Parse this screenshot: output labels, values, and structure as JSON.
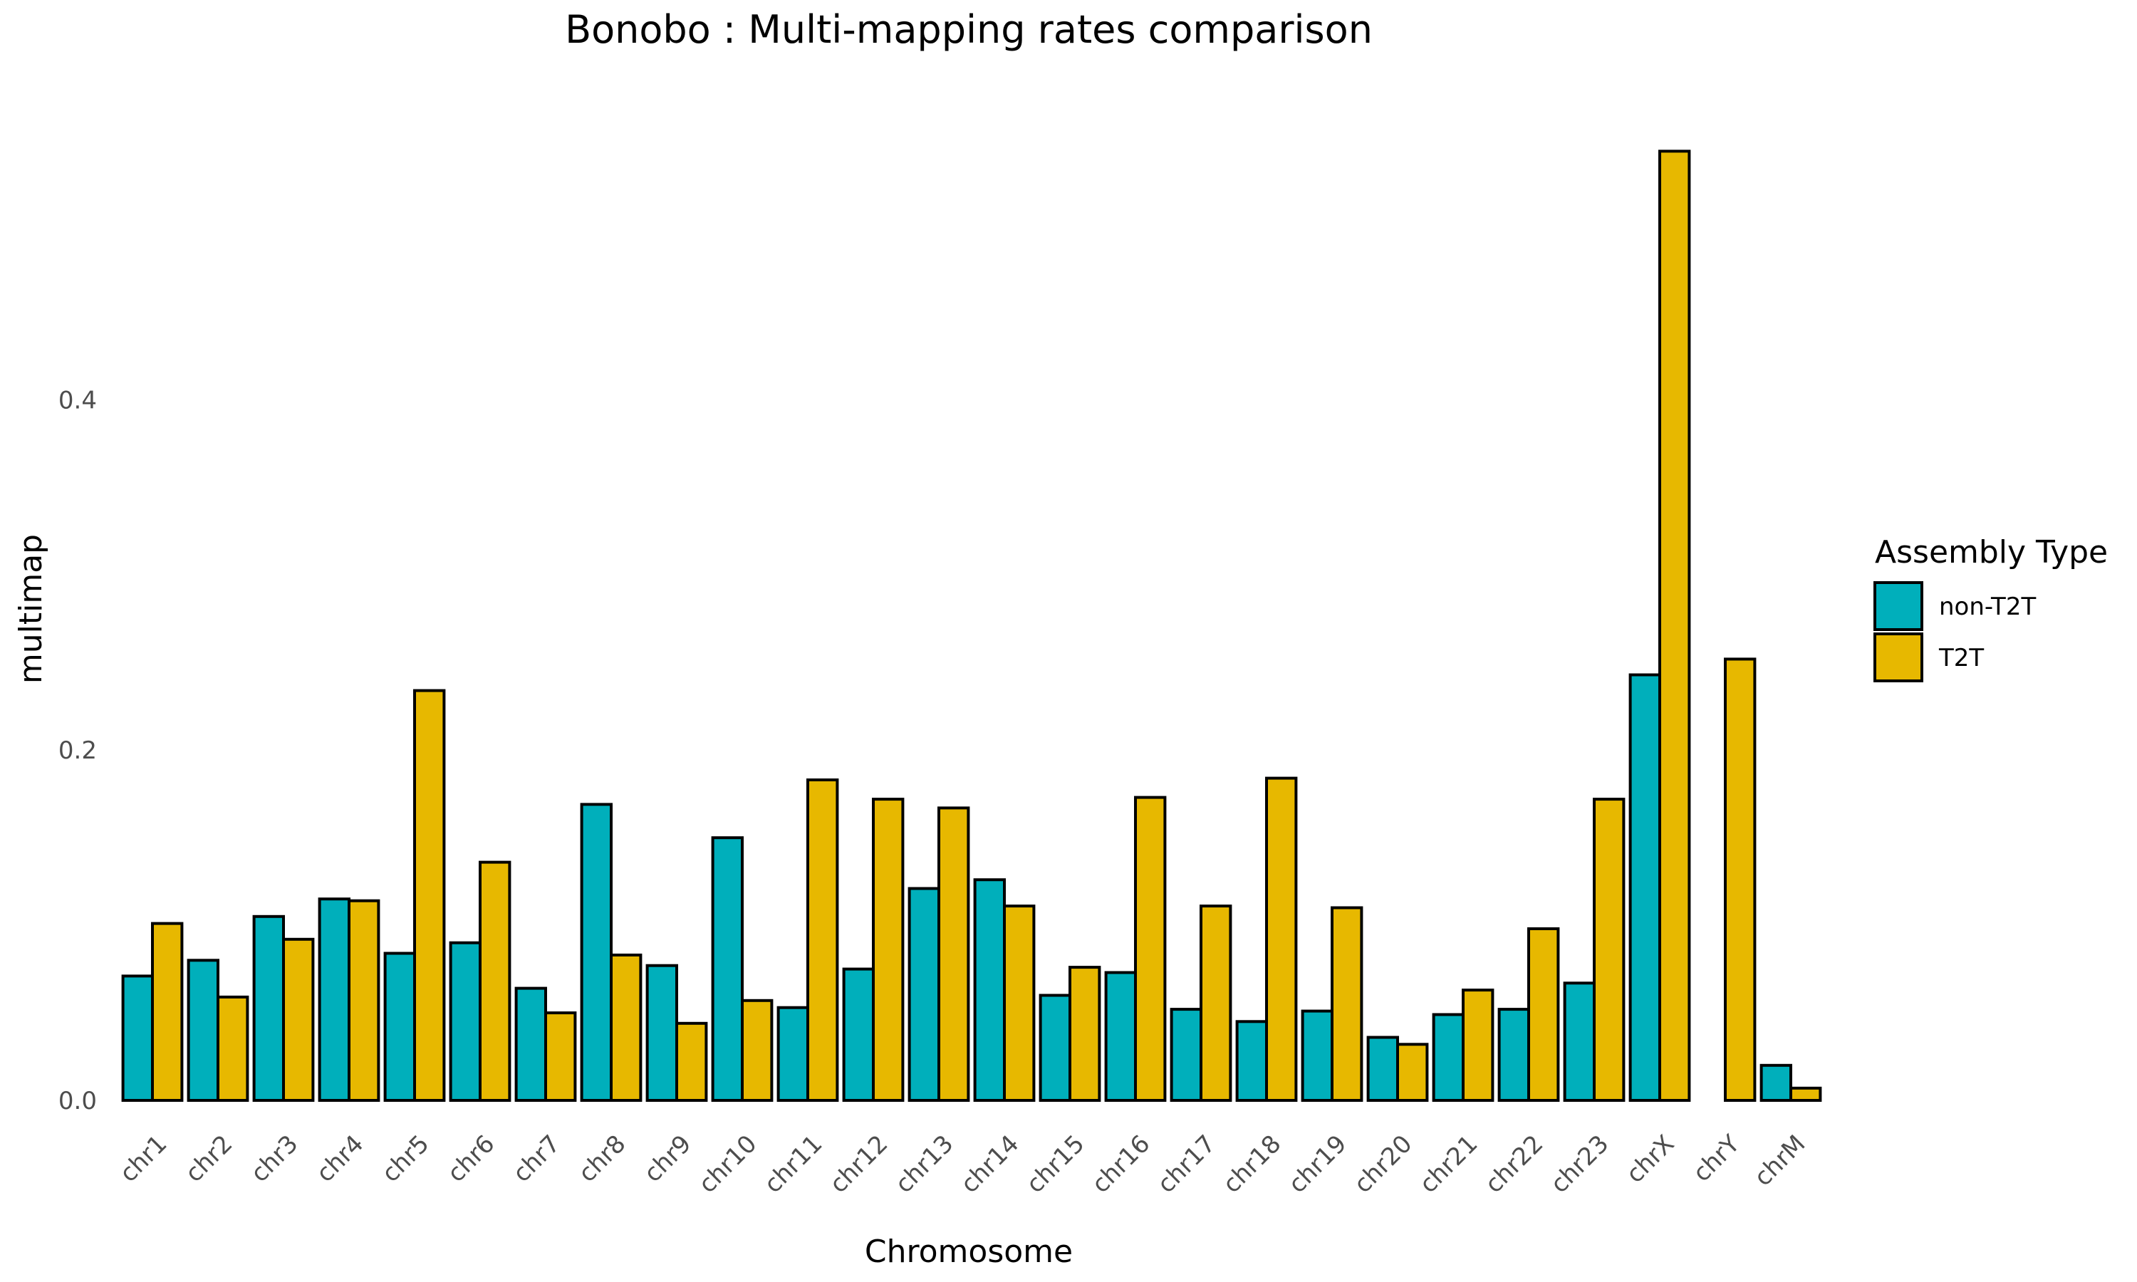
{
  "chart_data": {
    "type": "bar",
    "title": "Bonobo : Multi-mapping rates comparison",
    "xlabel": "Chromosome",
    "ylabel": "multimap",
    "ylim": [
      0,
      0.56
    ],
    "yticks": [
      0.0,
      0.2,
      0.4
    ],
    "ytick_labels": [
      "0.0",
      "0.2",
      "0.4"
    ],
    "grid": false,
    "legend": {
      "title": "Assembly Type",
      "position": "right"
    },
    "categories": [
      "chr1",
      "chr2",
      "chr3",
      "chr4",
      "chr5",
      "chr6",
      "chr7",
      "chr8",
      "chr9",
      "chr10",
      "chr11",
      "chr12",
      "chr13",
      "chr14",
      "chr15",
      "chr16",
      "chr17",
      "chr18",
      "chr19",
      "chr20",
      "chr21",
      "chr22",
      "chr23",
      "chrX",
      "chrY",
      "chrM"
    ],
    "series": [
      {
        "name": "non-T2T",
        "color": "#00AFBB",
        "values": [
          0.071,
          0.08,
          0.105,
          0.115,
          0.084,
          0.09,
          0.064,
          0.169,
          0.077,
          0.15,
          0.053,
          0.075,
          0.121,
          0.126,
          0.06,
          0.073,
          0.052,
          0.045,
          0.051,
          0.036,
          0.049,
          0.052,
          0.067,
          0.243,
          0.0,
          0.02
        ]
      },
      {
        "name": "T2T",
        "color": "#E7B800",
        "values": [
          0.101,
          0.059,
          0.092,
          0.114,
          0.234,
          0.136,
          0.05,
          0.083,
          0.044,
          0.057,
          0.183,
          0.172,
          0.167,
          0.111,
          0.076,
          0.173,
          0.111,
          0.184,
          0.11,
          0.032,
          0.063,
          0.098,
          0.172,
          0.542,
          0.252,
          0.007
        ]
      }
    ]
  }
}
